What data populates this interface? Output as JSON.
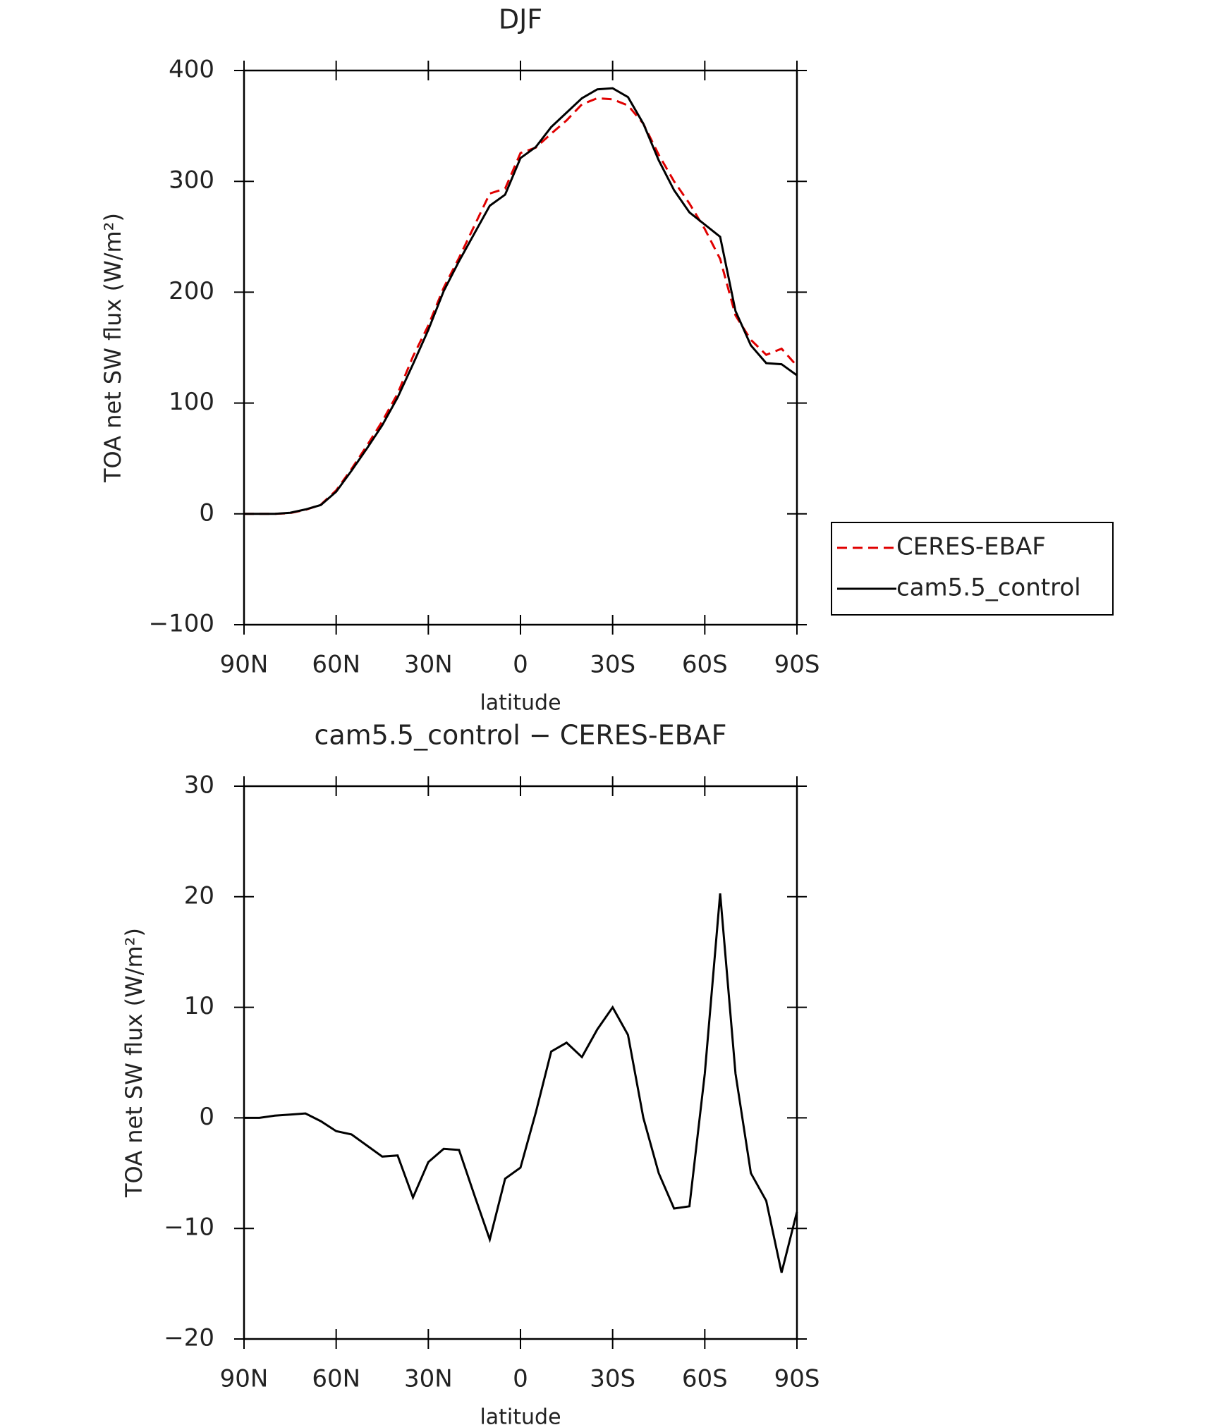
{
  "chart_data": [
    {
      "type": "line",
      "title": "DJF",
      "xlabel": "latitude",
      "ylabel": "TOA net SW flux (W/m²)",
      "x": [
        90,
        85,
        80,
        75,
        70,
        65,
        60,
        55,
        50,
        45,
        40,
        35,
        30,
        25,
        20,
        15,
        10,
        5,
        0,
        -5,
        -10,
        -15,
        -20,
        -25,
        -30,
        -35,
        -40,
        -45,
        -50,
        -55,
        -60,
        -65,
        -70,
        -75,
        -80,
        -85,
        -90
      ],
      "series": [
        {
          "name": "CERES-EBAF",
          "color": "#e00000",
          "line_style": "dashed",
          "values": [
            0,
            0,
            0,
            0.7,
            3.6,
            8.3,
            21.2,
            40.5,
            61.5,
            83.5,
            108.5,
            142,
            170,
            204,
            231,
            260,
            289,
            293.5,
            325.5,
            330.5,
            343,
            355,
            369.5,
            375,
            374,
            368.5,
            352,
            324,
            300,
            280,
            257,
            230,
            179,
            157,
            143.5,
            149,
            133.5
          ]
        },
        {
          "name": "cam5.5_control",
          "color": "#000000",
          "line_style": "solid",
          "values": [
            0,
            0,
            0,
            1,
            4,
            8,
            20,
            39,
            59,
            80,
            105,
            135,
            166,
            201,
            228,
            253,
            278,
            288,
            321,
            331,
            349,
            362,
            375,
            383,
            384,
            376,
            352,
            319,
            292,
            272,
            261,
            250,
            183,
            152,
            136,
            135,
            125
          ]
        }
      ],
      "xlim": [
        90,
        -90
      ],
      "xticks": [
        {
          "value": 90,
          "label": "90N"
        },
        {
          "value": 60,
          "label": "60N"
        },
        {
          "value": 30,
          "label": "30N"
        },
        0,
        {
          "value": -30,
          "label": "30S"
        },
        {
          "value": -60,
          "label": "60S"
        },
        {
          "value": -90,
          "label": "90S"
        }
      ],
      "ylim": [
        -100,
        400
      ],
      "yticks": [
        {
          "value": -100,
          "label": "−100"
        },
        0,
        100,
        200,
        300,
        400
      ],
      "legend": "right"
    },
    {
      "type": "line",
      "title": "cam5.5_control − CERES-EBAF",
      "xlabel": "latitude",
      "ylabel": "TOA net SW flux (W/m²)",
      "x": [
        90,
        85,
        80,
        75,
        70,
        65,
        60,
        55,
        50,
        45,
        40,
        35,
        30,
        25,
        20,
        15,
        10,
        5,
        0,
        -5,
        -10,
        -15,
        -20,
        -25,
        -30,
        -35,
        -40,
        -45,
        -50,
        -55,
        -60,
        -65,
        -70,
        -75,
        -80,
        -85,
        -90
      ],
      "series": [
        {
          "color": "#000000",
          "line_style": "solid",
          "values": [
            0,
            0,
            0.2,
            0.3,
            0.4,
            -0.3,
            -1.2,
            -1.5,
            -2.5,
            -3.5,
            -3.4,
            -7.2,
            -4,
            -2.8,
            -2.9,
            -7,
            -11,
            -5.5,
            -4.5,
            0.5,
            6,
            6.8,
            5.5,
            8,
            10,
            7.5,
            0,
            -5,
            -8.2,
            -8,
            4,
            20.3,
            4,
            -5,
            -7.5,
            -14,
            -8.5
          ]
        }
      ],
      "xlim": [
        90,
        -90
      ],
      "xticks": [
        {
          "value": 90,
          "label": "90N"
        },
        {
          "value": 60,
          "label": "60N"
        },
        {
          "value": 30,
          "label": "30N"
        },
        0,
        {
          "value": -30,
          "label": "30S"
        },
        {
          "value": -60,
          "label": "60S"
        },
        {
          "value": -90,
          "label": "90S"
        }
      ],
      "ylim": [
        -20,
        30
      ],
      "yticks": [
        {
          "value": -20,
          "label": "−20"
        },
        {
          "value": -10,
          "label": "−10"
        },
        0,
        10,
        20,
        30
      ]
    }
  ]
}
